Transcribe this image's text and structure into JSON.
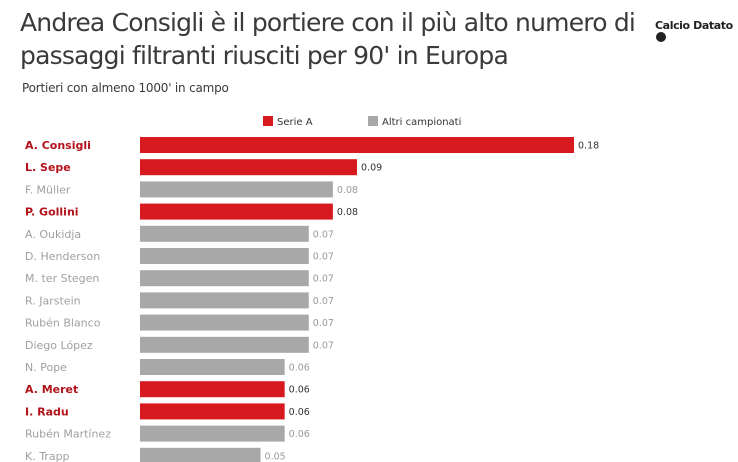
{
  "header": {
    "title": "Andrea Consigli è il portiere con il più alto numero di passaggi filtranti riusciti per 90' in Europa",
    "subtitle": "Portieri con almeno 1000' in campo",
    "logo": "Calcio Datato"
  },
  "colors": {
    "serie_a": "#d71920",
    "altri": "#a8a8a8",
    "serie_a_label": "#b3121a",
    "altri_label": "#a0a0a0"
  },
  "chart_data": {
    "type": "bar",
    "orientation": "horizontal",
    "title": "Andrea Consigli è il portiere con il più alto numero di passaggi filtranti riusciti per 90' in Europa",
    "subtitle": "Portieri con almeno 1000' in campo",
    "legend": [
      "Serie A",
      "Altri campionati"
    ],
    "legend_position": "top",
    "xlim": [
      0,
      0.18
    ],
    "grid": false,
    "categories": [
      "A. Consigli",
      "L. Sepe",
      "F. Müller",
      "P. Gollini",
      "A. Oukidja",
      "D. Henderson",
      "M. ter Stegen",
      "R. Jarstein",
      "Rubén Blanco",
      "Diego López",
      "N. Pope",
      "A. Meret",
      "I. Radu",
      "Rubén Martínez",
      "K. Trapp"
    ],
    "values": [
      0.18,
      0.09,
      0.08,
      0.08,
      0.07,
      0.07,
      0.07,
      0.07,
      0.07,
      0.07,
      0.06,
      0.06,
      0.06,
      0.06,
      0.05
    ],
    "labels": [
      "0.18",
      "0.09",
      "0.08",
      "0.08",
      "0.07",
      "0.07",
      "0.07",
      "0.07",
      "0.07",
      "0.07",
      "0.06",
      "0.06",
      "0.06",
      "0.06",
      "0.05"
    ],
    "groups": [
      "Serie A",
      "Serie A",
      "Altri campionati",
      "Serie A",
      "Altri campionati",
      "Altri campionati",
      "Altri campionati",
      "Altri campionati",
      "Altri campionati",
      "Altri campionati",
      "Altri campionati",
      "Serie A",
      "Serie A",
      "Altri campionati",
      "Altri campionati"
    ]
  }
}
